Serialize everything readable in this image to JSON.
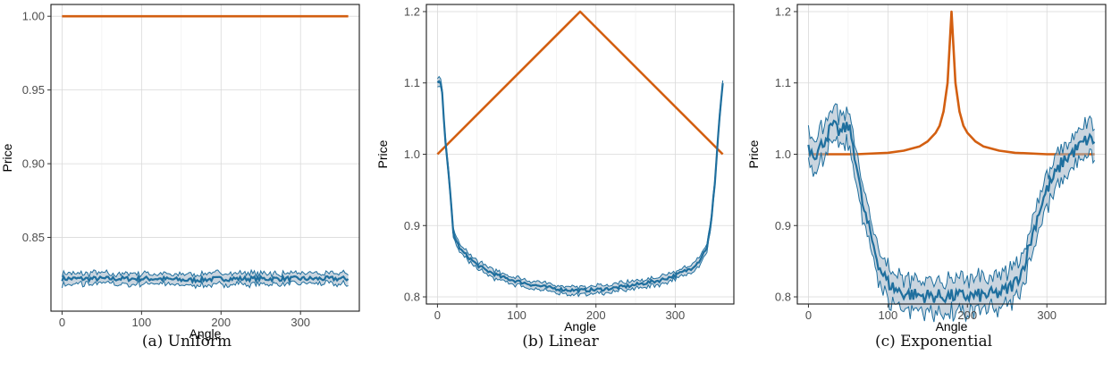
{
  "colors": {
    "sample": "#1f6f9e",
    "band": "#9fb3c4",
    "true_price": "#d35f11",
    "grid": "#d9d9d9",
    "frame": "#1a1a1a"
  },
  "chart_data": [
    {
      "type": "line",
      "caption": "(a) Uniform",
      "xlabel": "Angle",
      "ylabel": "Price",
      "xlim": [
        -14,
        374
      ],
      "ylim": [
        0.8,
        1.008
      ],
      "xticks": [
        0,
        100,
        200,
        300
      ],
      "xtick_labels": [
        "0",
        "100",
        "200",
        "300"
      ],
      "yticks": [
        0.85,
        0.9,
        0.95,
        1.0
      ],
      "ytick_labels": [
        "0.85",
        "0.90",
        "0.95",
        "1.00"
      ],
      "grid": true,
      "legend": "none",
      "series": [
        {
          "kind": "true_price",
          "x": [
            0,
            360
          ],
          "y": [
            1.0,
            1.0
          ]
        },
        {
          "kind": "estimate",
          "x": [
            0,
            40,
            80,
            120,
            160,
            200,
            240,
            280,
            320,
            360
          ],
          "y": [
            0.822,
            0.822,
            0.822,
            0.822,
            0.821,
            0.822,
            0.822,
            0.822,
            0.822,
            0.822
          ],
          "band": 0.004
        }
      ]
    },
    {
      "type": "line",
      "caption": "(b) Linear",
      "xlabel": "Angle",
      "ylabel": "Price",
      "xlim": [
        -14,
        374
      ],
      "ylim": [
        0.79,
        1.21
      ],
      "xticks": [
        0,
        100,
        200,
        300
      ],
      "xtick_labels": [
        "0",
        "100",
        "200",
        "300"
      ],
      "yticks": [
        0.8,
        0.9,
        1.0,
        1.1,
        1.2
      ],
      "ytick_labels": [
        "0.8",
        "0.9",
        "1.0",
        "1.1",
        "1.2"
      ],
      "grid": true,
      "legend": "none",
      "series": [
        {
          "kind": "true_price",
          "x": [
            0,
            180,
            360
          ],
          "y": [
            1.0,
            1.2,
            1.0
          ]
        },
        {
          "kind": "estimate",
          "x": [
            0,
            5,
            10,
            15,
            20,
            25,
            30,
            40,
            50,
            60,
            80,
            100,
            120,
            140,
            160,
            180,
            200,
            220,
            240,
            260,
            280,
            300,
            320,
            330,
            340,
            345,
            350,
            355,
            360
          ],
          "y": [
            1.1,
            1.1,
            1.02,
            0.96,
            0.89,
            0.875,
            0.865,
            0.855,
            0.845,
            0.838,
            0.828,
            0.822,
            0.817,
            0.813,
            0.81,
            0.809,
            0.81,
            0.812,
            0.815,
            0.819,
            0.823,
            0.83,
            0.84,
            0.85,
            0.87,
            0.9,
            0.96,
            1.04,
            1.1
          ],
          "band": 0.006
        }
      ]
    },
    {
      "type": "line",
      "caption": "(c) Exponential",
      "xlabel": "Angle",
      "ylabel": "Price",
      "xlim": [
        -14,
        374
      ],
      "ylim": [
        0.79,
        1.21
      ],
      "xticks": [
        0,
        100,
        200,
        300
      ],
      "xtick_labels": [
        "0",
        "100",
        "200",
        "300"
      ],
      "yticks": [
        0.8,
        0.9,
        1.0,
        1.1,
        1.2
      ],
      "ytick_labels": [
        "0.8",
        "0.9",
        "1.0",
        "1.1",
        "1.2"
      ],
      "grid": true,
      "legend": "none",
      "series": [
        {
          "kind": "true_price",
          "x": [
            0,
            60,
            100,
            120,
            140,
            150,
            160,
            165,
            170,
            175,
            180,
            185,
            190,
            195,
            200,
            210,
            220,
            240,
            260,
            300,
            360
          ],
          "y": [
            1.0,
            1.0,
            1.002,
            1.005,
            1.011,
            1.018,
            1.03,
            1.04,
            1.06,
            1.1,
            1.2,
            1.1,
            1.06,
            1.04,
            1.03,
            1.018,
            1.011,
            1.005,
            1.002,
            1.0,
            1.0
          ]
        },
        {
          "kind": "estimate",
          "x": [
            0,
            10,
            20,
            30,
            40,
            50,
            55,
            60,
            65,
            70,
            75,
            80,
            90,
            100,
            110,
            120,
            140,
            160,
            180,
            200,
            220,
            240,
            250,
            260,
            270,
            275,
            280,
            290,
            300,
            310,
            320,
            330,
            340,
            350,
            360
          ],
          "y": [
            1.01,
            1.0,
            1.02,
            1.04,
            1.03,
            1.04,
            1.02,
            0.99,
            0.95,
            0.92,
            0.9,
            0.88,
            0.84,
            0.82,
            0.81,
            0.805,
            0.802,
            0.801,
            0.801,
            0.801,
            0.802,
            0.805,
            0.81,
            0.82,
            0.84,
            0.86,
            0.88,
            0.92,
            0.95,
            0.97,
            0.99,
            1.0,
            1.01,
            1.02,
            1.02
          ],
          "band": 0.025
        }
      ]
    }
  ]
}
